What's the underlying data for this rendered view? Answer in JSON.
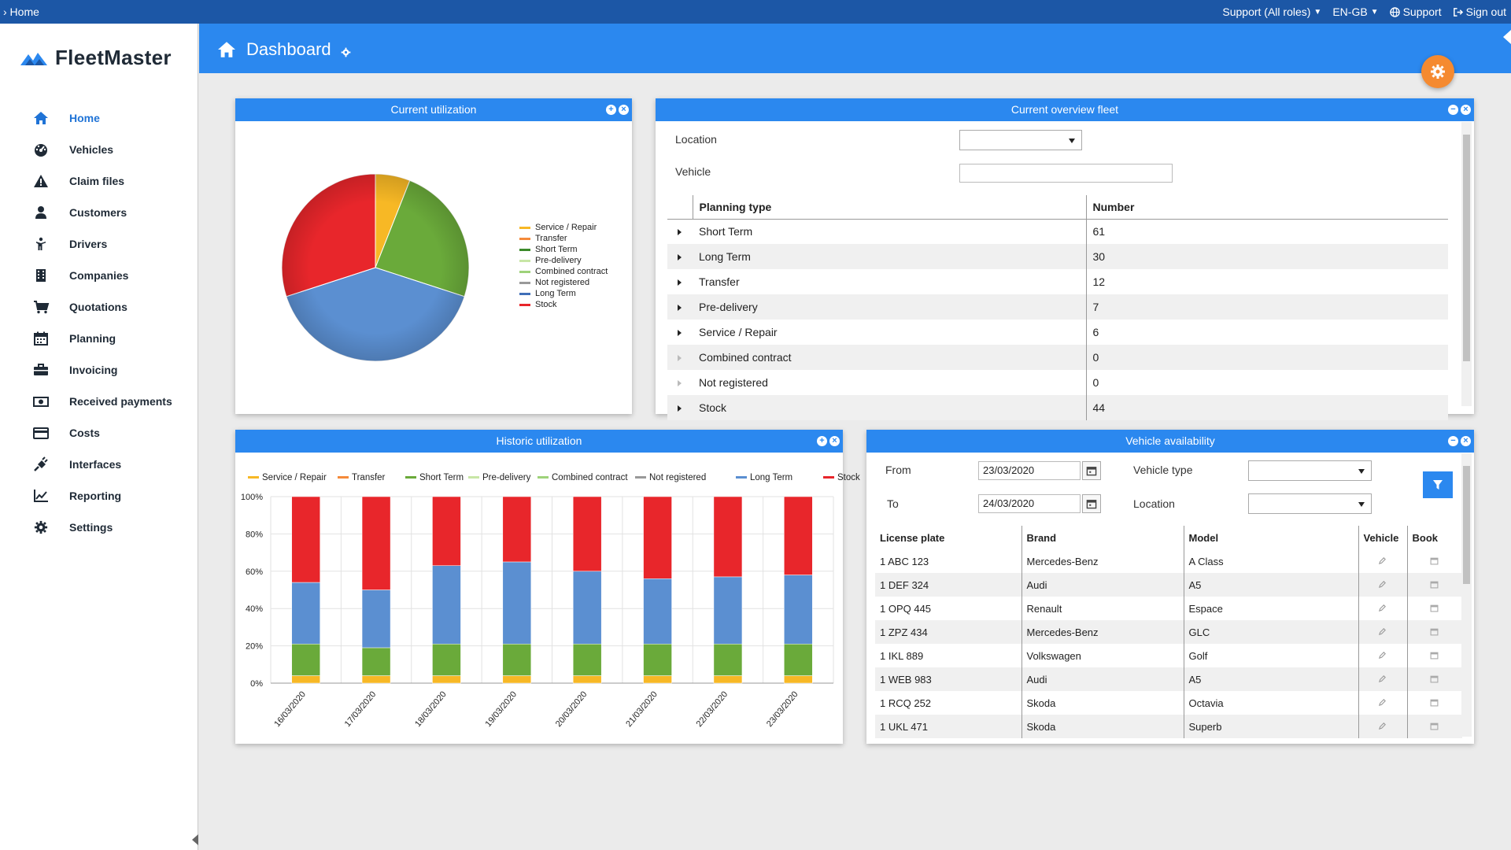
{
  "topbar": {
    "breadcrumb": "› Home",
    "role": "Support (All roles)",
    "language": "EN-GB",
    "support": "Support",
    "signout": "Sign out"
  },
  "sidebar": {
    "brand": "FleetMaster",
    "items": [
      {
        "label": "Home",
        "icon": "home-icon"
      },
      {
        "label": "Vehicles",
        "icon": "dashboard-gauge-icon"
      },
      {
        "label": "Claim files",
        "icon": "warning-icon"
      },
      {
        "label": "Customers",
        "icon": "user-icon"
      },
      {
        "label": "Drivers",
        "icon": "driver-icon"
      },
      {
        "label": "Companies",
        "icon": "building-icon"
      },
      {
        "label": "Quotations",
        "icon": "cart-icon"
      },
      {
        "label": "Planning",
        "icon": "calendar-icon"
      },
      {
        "label": "Invoicing",
        "icon": "briefcase-icon"
      },
      {
        "label": "Received payments",
        "icon": "money-icon"
      },
      {
        "label": "Costs",
        "icon": "credit-card-icon"
      },
      {
        "label": "Interfaces",
        "icon": "plug-icon"
      },
      {
        "label": "Reporting",
        "icon": "line-chart-icon"
      },
      {
        "label": "Settings",
        "icon": "gear-icon"
      }
    ]
  },
  "header": {
    "title": "Dashboard"
  },
  "colors": {
    "service_repair": "#f7b825",
    "transfer": "#f58a3a",
    "short_term": "#6aaa3a",
    "pre_delivery": "#c8e6a6",
    "combined_contract": "#9ed27a",
    "not_registered": "#999999",
    "long_term": "#5b8fd1",
    "stock": "#e8262b"
  },
  "panels": {
    "current_utilization": {
      "title": "Current utilization"
    },
    "overview": {
      "title": "Current overview fleet",
      "location_label": "Location",
      "vehicle_label": "Vehicle",
      "col_type": "Planning type",
      "col_number": "Number",
      "rows": [
        {
          "type": "Short Term",
          "number": "61",
          "expandable": true
        },
        {
          "type": "Long Term",
          "number": "30",
          "expandable": true
        },
        {
          "type": "Transfer",
          "number": "12",
          "expandable": true
        },
        {
          "type": "Pre-delivery",
          "number": "7",
          "expandable": true
        },
        {
          "type": "Service / Repair",
          "number": "6",
          "expandable": true
        },
        {
          "type": "Combined contract",
          "number": "0",
          "expandable": false
        },
        {
          "type": "Not registered",
          "number": "0",
          "expandable": false
        },
        {
          "type": "Stock",
          "number": "44",
          "expandable": true
        }
      ]
    },
    "historic": {
      "title": "Historic utilization"
    },
    "availability": {
      "title": "Vehicle availability",
      "from_label": "From",
      "from_value": "23/03/2020",
      "to_label": "To",
      "to_value": "24/03/2020",
      "vehicle_type_label": "Vehicle type",
      "location_label": "Location",
      "headers": [
        "License plate",
        "Brand",
        "Model",
        "Vehicle",
        "Book"
      ],
      "rows": [
        {
          "plate": "1 ABC 123",
          "brand": "Mercedes-Benz",
          "model": "A Class"
        },
        {
          "plate": "1 DEF 324",
          "brand": "Audi",
          "model": "A5"
        },
        {
          "plate": "1 OPQ 445",
          "brand": "Renault",
          "model": "Espace"
        },
        {
          "plate": "1 ZPZ 434",
          "brand": "Mercedes-Benz",
          "model": "GLC"
        },
        {
          "plate": "1 IKL 889",
          "brand": "Volkswagen",
          "model": "Golf"
        },
        {
          "plate": "1 WEB 983",
          "brand": "Audi",
          "model": "A5"
        },
        {
          "plate": "1 RCQ 252",
          "brand": "Skoda",
          "model": "Octavia"
        },
        {
          "plate": "1 UKL 471",
          "brand": "Skoda",
          "model": "Superb"
        }
      ]
    }
  },
  "chart_data": [
    {
      "type": "pie",
      "legend": [
        "Service / Repair",
        "Transfer",
        "Short Term",
        "Pre-delivery",
        "Combined contract",
        "Not registered",
        "Long Term",
        "Stock"
      ],
      "values": [
        6,
        0,
        24,
        0,
        0,
        0,
        40,
        30
      ],
      "legend_position": "right"
    },
    {
      "type": "bar",
      "stacked": true,
      "categories": [
        "16/03/2020",
        "17/03/2020",
        "18/03/2020",
        "19/03/2020",
        "20/03/2020",
        "21/03/2020",
        "22/03/2020",
        "23/03/2020"
      ],
      "y_ticks": [
        "0%",
        "20%",
        "40%",
        "60%",
        "80%",
        "100%"
      ],
      "ylim": [
        0,
        100
      ],
      "legend_position": "top",
      "grid": true,
      "series": [
        {
          "name": "Service / Repair",
          "values": [
            4,
            4,
            4,
            4,
            4,
            4,
            4,
            4
          ]
        },
        {
          "name": "Transfer",
          "values": [
            0,
            0,
            0,
            0,
            0,
            0,
            0,
            0
          ]
        },
        {
          "name": "Short Term",
          "values": [
            17,
            15,
            17,
            17,
            17,
            17,
            17,
            17
          ]
        },
        {
          "name": "Pre-delivery",
          "values": [
            0,
            0,
            0,
            0,
            0,
            0,
            0,
            0
          ]
        },
        {
          "name": "Combined contract",
          "values": [
            0,
            0,
            0,
            0,
            0,
            0,
            0,
            0
          ]
        },
        {
          "name": "Not registered",
          "values": [
            0,
            0,
            0,
            0,
            0,
            0,
            0,
            0
          ]
        },
        {
          "name": "Long Term",
          "values": [
            33,
            31,
            42,
            44,
            39,
            35,
            36,
            37
          ]
        },
        {
          "name": "Stock",
          "values": [
            46,
            50,
            37,
            35,
            40,
            44,
            43,
            42
          ]
        }
      ]
    }
  ]
}
